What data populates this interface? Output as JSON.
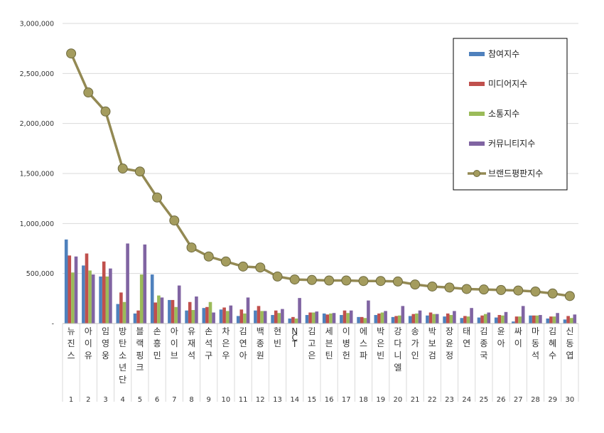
{
  "chart_data": {
    "type": "bar",
    "ylim": [
      0,
      3000000
    ],
    "yticks": [
      "3,000,000",
      "2,500,000",
      "2,000,000",
      "1,500,000",
      "1,000,000",
      "500,000",
      "-"
    ],
    "ytick_values": [
      3000000,
      2500000,
      2000000,
      1500000,
      1000000,
      500000,
      0
    ],
    "grid": true,
    "legend_position": "top-right",
    "categories": [
      "뉴진스",
      "아이유",
      "임영웅",
      "방탄소년단",
      "블랙핑크",
      "손흥민",
      "아이브",
      "유재석",
      "손석구",
      "차은우",
      "김연아",
      "백종원",
      "현빈",
      "NCT",
      "김고은",
      "세븐틴",
      "이병헌",
      "에스파",
      "박은빈",
      "강다니엘",
      "송가인",
      "박보검",
      "장윤정",
      "태연",
      "김종국",
      "윤아",
      "싸이",
      "마동석",
      "김혜수",
      "신동엽"
    ],
    "ranks": [
      "1",
      "2",
      "3",
      "4",
      "5",
      "6",
      "7",
      "8",
      "9",
      "10",
      "11",
      "12",
      "13",
      "14",
      "15",
      "16",
      "17",
      "18",
      "19",
      "20",
      "21",
      "22",
      "23",
      "24",
      "25",
      "26",
      "27",
      "28",
      "29",
      "30"
    ],
    "series": [
      {
        "name": "참여지수",
        "color": "#4F81BD",
        "values": [
          840000,
          580000,
          470000,
          195000,
          100000,
          490000,
          235000,
          130000,
          155000,
          140000,
          75000,
          130000,
          85000,
          50000,
          85000,
          100000,
          85000,
          65000,
          85000,
          65000,
          75000,
          80000,
          70000,
          55000,
          60000,
          60000,
          20000,
          80000,
          50000,
          40000
        ]
      },
      {
        "name": "미디어지수",
        "color": "#C0504D",
        "values": [
          680000,
          700000,
          620000,
          310000,
          130000,
          210000,
          235000,
          215000,
          165000,
          160000,
          140000,
          175000,
          130000,
          65000,
          110000,
          90000,
          130000,
          65000,
          100000,
          75000,
          95000,
          110000,
          100000,
          75000,
          80000,
          85000,
          70000,
          80000,
          70000,
          75000
        ]
      },
      {
        "name": "소통지수",
        "color": "#9BBB59",
        "values": [
          510000,
          530000,
          470000,
          215000,
          490000,
          280000,
          165000,
          135000,
          215000,
          125000,
          100000,
          125000,
          105000,
          50000,
          110000,
          100000,
          105000,
          55000,
          110000,
          80000,
          100000,
          95000,
          85000,
          70000,
          95000,
          80000,
          70000,
          80000,
          70000,
          55000
        ]
      },
      {
        "name": "커뮤니티지수",
        "color": "#8064A2",
        "values": [
          670000,
          490000,
          550000,
          800000,
          790000,
          260000,
          380000,
          270000,
          110000,
          180000,
          260000,
          125000,
          145000,
          255000,
          120000,
          105000,
          130000,
          230000,
          125000,
          175000,
          130000,
          95000,
          125000,
          155000,
          110000,
          115000,
          175000,
          85000,
          105000,
          90000
        ]
      }
    ],
    "line_series": {
      "name": "브랜드평판지수",
      "color": "#938953",
      "marker_fill": "#A49C5E",
      "values": [
        2700000,
        2310000,
        2120000,
        1550000,
        1520000,
        1260000,
        1030000,
        760000,
        670000,
        620000,
        570000,
        560000,
        470000,
        440000,
        435000,
        430000,
        430000,
        425000,
        425000,
        420000,
        390000,
        370000,
        360000,
        345000,
        340000,
        335000,
        330000,
        320000,
        300000,
        275000
      ]
    }
  }
}
